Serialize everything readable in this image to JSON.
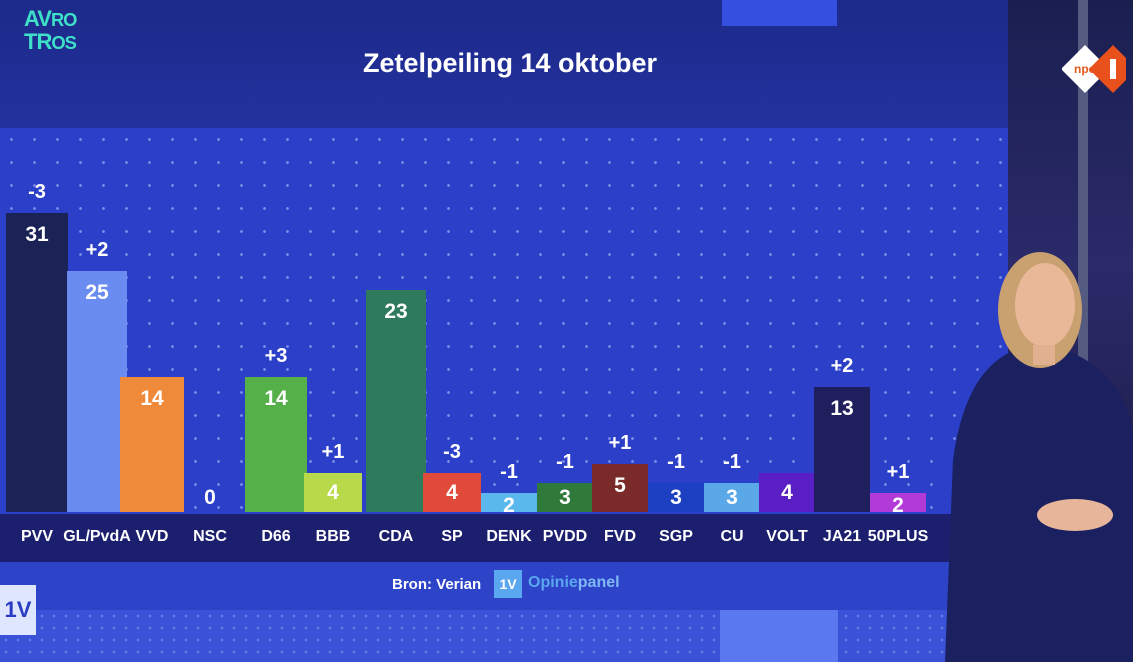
{
  "broadcaster_logo": "AVROTROS",
  "channel_logo": "NPO 1",
  "corner_badge": "1V",
  "chart_data": {
    "type": "bar",
    "title": "Zetelpeiling 14 oktober",
    "categories": [
      "PVV",
      "GL/PvdA",
      "VVD",
      "NSC",
      "D66",
      "BBB",
      "CDA",
      "SP",
      "DENK",
      "PVDD",
      "FVD",
      "SGP",
      "CU",
      "VOLT",
      "JA21",
      "50PLUS"
    ],
    "values": [
      31,
      25,
      14,
      0,
      14,
      4,
      23,
      4,
      2,
      3,
      5,
      3,
      3,
      4,
      13,
      2
    ],
    "changes": [
      "-3",
      "+2",
      "",
      "",
      "+3",
      "+1",
      "",
      "-3",
      "-1",
      "-1",
      "+1",
      "-1",
      "-1",
      "",
      "+2",
      "+1"
    ],
    "colors": [
      "#1b2255",
      "#6a8cf0",
      "#ef8a3a",
      "#2b3fc8",
      "#55b04a",
      "#b8d94a",
      "#2d7a5c",
      "#e04a3a",
      "#5ab8ec",
      "#2f7a3a",
      "#7a2a28",
      "#1d40c2",
      "#5aa8e8",
      "#5a1fc4",
      "#1f1f5e",
      "#b23ad8"
    ],
    "xlabel": "",
    "ylabel": "",
    "ylim": [
      0,
      31
    ],
    "grid": false,
    "legend": "none"
  },
  "footer": {
    "source": "Bron: Verian",
    "badge": "1V",
    "panel_part1": "Opinie",
    "panel_part2": "panel"
  }
}
